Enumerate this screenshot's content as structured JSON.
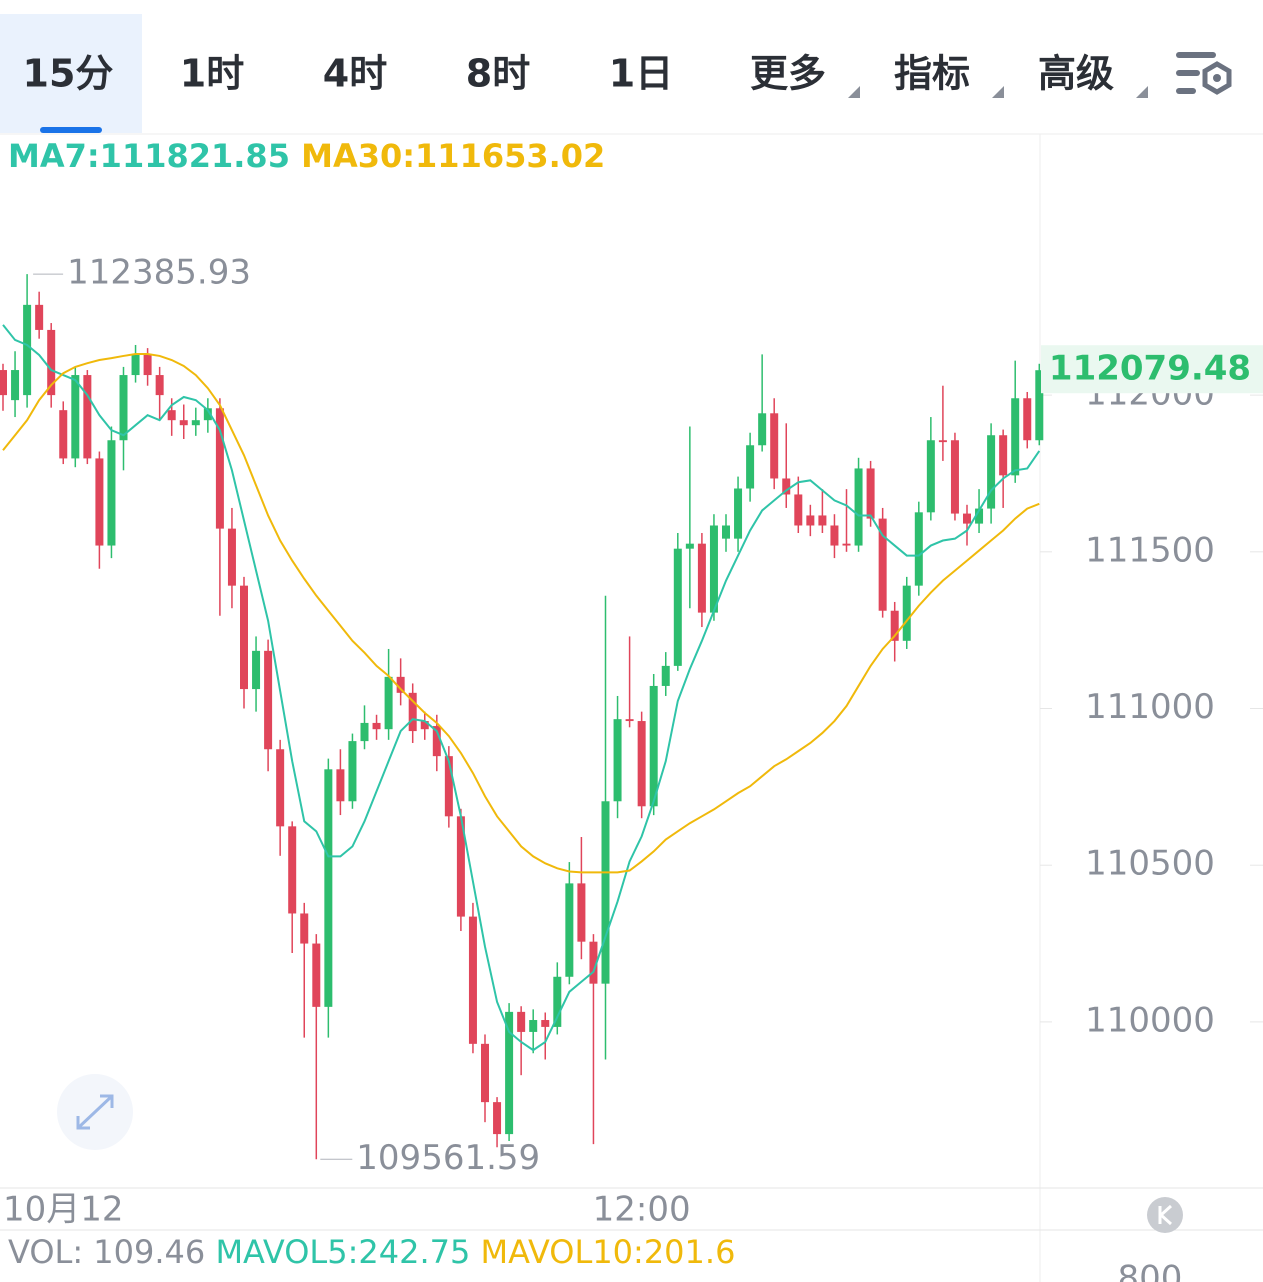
{
  "tabs": [
    "15分",
    "1时",
    "4时",
    "8时",
    "1日",
    "更多",
    "指标",
    "高级"
  ],
  "chart_data": {
    "type": "candlestick",
    "up_color": "#2dbd6e",
    "down_color": "#e0455a",
    "ylim": [
      109470,
      112830
    ],
    "yticks": [
      110000,
      110500,
      111000,
      111500,
      112000
    ],
    "categories": [
      null,
      null,
      null,
      null,
      null,
      "10月12",
      null,
      null,
      null,
      null,
      null,
      null,
      null,
      null,
      null,
      null,
      null,
      null,
      null,
      null,
      null,
      null,
      null,
      null,
      null,
      null,
      null,
      null,
      null,
      null,
      null,
      null,
      null,
      null,
      null,
      null,
      null,
      null,
      null,
      null,
      null,
      null,
      null,
      null,
      null,
      null,
      null,
      null,
      null,
      null,
      null,
      null,
      null,
      "12:00",
      null,
      null,
      null,
      null,
      null,
      null,
      null,
      null,
      null,
      null,
      null,
      null,
      null,
      null,
      null,
      null,
      null,
      null,
      null,
      null,
      null,
      null,
      null,
      null,
      null,
      null,
      null,
      null,
      null,
      null,
      null,
      null,
      null
    ],
    "open": [
      112080,
      111984,
      112000,
      112288,
      112208,
      111952,
      111798,
      112064,
      111798,
      111520,
      111856,
      112064,
      112128,
      112064,
      111952,
      111920,
      111904,
      111920,
      111958,
      111574,
      111392,
      111062,
      111184,
      110870,
      110624,
      110346,
      110250,
      110048,
      110806,
      110704,
      110896,
      110954,
      110934,
      111101,
      111050,
      110960,
      110944,
      110848,
      110656,
      110336,
      109930,
      109744,
      109642,
      110032,
      109968,
      110006,
      109984,
      110144,
      110442,
      110256,
      110122,
      110704,
      110966,
      110960,
      110688,
      111072,
      111136,
      111510,
      111526,
      111306,
      111542,
      111542,
      111702,
      111840,
      111942,
      111734,
      111683,
      111616,
      111616,
      111584,
      111526,
      111520,
      111766,
      111606,
      111312,
      111216,
      111392,
      111626,
      111856,
      111856,
      111622,
      111590,
      111638,
      111872,
      111744,
      111990,
      111856
    ],
    "high": [
      112100,
      112140,
      112385.93,
      112330,
      112230,
      111980,
      112090,
      112080,
      111820,
      111900,
      112090,
      112160,
      112150,
      112090,
      111990,
      111970,
      111960,
      111990,
      111990,
      111640,
      111420,
      111230,
      111220,
      110900,
      110640,
      110380,
      110280,
      110840,
      110870,
      110920,
      111010,
      110980,
      111190,
      111160,
      111080,
      110990,
      110980,
      110880,
      110680,
      110380,
      109960,
      109760,
      110060,
      110050,
      110040,
      110030,
      110190,
      110510,
      110590,
      110280,
      111360,
      111040,
      111230,
      110990,
      111110,
      111180,
      111560,
      111900,
      111560,
      111620,
      111620,
      111740,
      111880,
      112130,
      111990,
      111910,
      111740,
      111650,
      111700,
      111620,
      111700,
      111800,
      111790,
      111640,
      111340,
      111420,
      111660,
      111930,
      112030,
      111880,
      111650,
      111700,
      111910,
      111890,
      112110,
      112010,
      112100
    ],
    "low": [
      111950,
      111930,
      111960,
      112180,
      111960,
      111780,
      111770,
      111780,
      111446,
      111480,
      111760,
      112040,
      112030,
      111920,
      111870,
      111860,
      111870,
      111880,
      111296,
      111320,
      111000,
      110990,
      110800,
      110530,
      110220,
      109950,
      109561.59,
      109950,
      110660,
      110680,
      110870,
      110900,
      110900,
      111010,
      110890,
      110900,
      110800,
      110620,
      110290,
      109900,
      109680,
      109600,
      109620,
      109830,
      109900,
      109880,
      109960,
      110120,
      110200,
      109610,
      109880,
      110650,
      110940,
      110650,
      110660,
      111040,
      111120,
      111320,
      111260,
      111280,
      111500,
      111500,
      111660,
      111820,
      111700,
      111640,
      111560,
      111550,
      111560,
      111480,
      111500,
      111500,
      111580,
      111290,
      111150,
      111190,
      111360,
      111600,
      111790,
      111600,
      111520,
      111560,
      111590,
      111640,
      111720,
      111830,
      111840
    ],
    "close": [
      112000,
      112080,
      112288,
      112208,
      112000,
      111798,
      112064,
      111798,
      111520,
      111856,
      112064,
      112128,
      112064,
      112000,
      111920,
      111904,
      111920,
      111958,
      111574,
      111392,
      111062,
      111184,
      110870,
      110624,
      110346,
      110250,
      110048,
      110806,
      110704,
      110896,
      110954,
      110934,
      111101,
      111050,
      110928,
      110934,
      110848,
      110656,
      110336,
      109930,
      109744,
      109642,
      110032,
      109968,
      110006,
      109984,
      110144,
      110442,
      110256,
      110122,
      110704,
      110966,
      110960,
      110688,
      111072,
      111136,
      111510,
      111526,
      111306,
      111584,
      111584,
      111702,
      111840,
      111942,
      111734,
      111683,
      111584,
      111584,
      111584,
      111520,
      111520,
      111766,
      111606,
      111312,
      111216,
      111392,
      111626,
      111856,
      111850,
      111622,
      111590,
      111638,
      111872,
      111744,
      111990,
      111856,
      112079.48
    ],
    "series": [
      {
        "name": "MA7",
        "color": "#2fc4a8",
        "values": [
          112224,
          112176,
          112160,
          112128,
          112080,
          112064,
          112048,
          112000,
          111936,
          111888,
          111872,
          111904,
          111936,
          111920,
          111968,
          111994,
          111984,
          111952,
          111888,
          111760,
          111600,
          111440,
          111280,
          111056,
          110832,
          110640,
          110608,
          110528,
          110528,
          110560,
          110640,
          110736,
          110832,
          110928,
          110966,
          110960,
          110928,
          110832,
          110656,
          110448,
          110240,
          110064,
          109968,
          109936,
          109910,
          109936,
          110016,
          110096,
          110128,
          110160,
          110272,
          110384,
          110512,
          110592,
          110704,
          110832,
          111024,
          111126,
          111216,
          111312,
          111408,
          111488,
          111568,
          111632,
          111664,
          111696,
          111722,
          111728,
          111696,
          111664,
          111648,
          111616,
          111616,
          111552,
          111520,
          111488,
          111488,
          111520,
          111536,
          111542,
          111568,
          111632,
          111696,
          111734,
          111760,
          111766,
          111821.85
        ]
      },
      {
        "name": "MA30",
        "color": "#f0b90b",
        "values": [
          111824,
          111872,
          111920,
          111984,
          112032,
          112070,
          112090,
          112102,
          112112,
          112118,
          112125,
          112131,
          112131,
          112125,
          112112,
          112093,
          112064,
          112022,
          111968,
          111888,
          111808,
          111712,
          111616,
          111536,
          111472,
          111414,
          111360,
          111312,
          111264,
          111216,
          111178,
          111136,
          111104,
          111062,
          111024,
          110986,
          110954,
          110912,
          110858,
          110794,
          110720,
          110656,
          110608,
          110560,
          110528,
          110506,
          110490,
          110480,
          110477,
          110477,
          110477,
          110477,
          110483,
          110512,
          110544,
          110582,
          110608,
          110634,
          110656,
          110678,
          110704,
          110730,
          110752,
          110784,
          110816,
          110838,
          110864,
          110890,
          110922,
          110960,
          111008,
          111072,
          111136,
          111190,
          111232,
          111280,
          111328,
          111370,
          111408,
          111440,
          111472,
          111504,
          111536,
          111568,
          111606,
          111638,
          111653.02
        ]
      }
    ]
  },
  "volume": {
    "label": "VOL",
    "value": 109.46,
    "series": [
      {
        "name": "MAVOL5",
        "value": 242.75,
        "color": "#2fc4a8"
      },
      {
        "name": "MAVOL10",
        "value": 201.6,
        "color": "#f0b90b"
      }
    ],
    "axis_label": 800
  }
}
